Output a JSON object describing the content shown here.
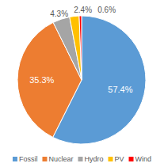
{
  "chart_data": {
    "type": "pie",
    "categories": [
      "Fossil",
      "Nuclear",
      "Hydro",
      "PV",
      "Wind"
    ],
    "values": [
      57.4,
      35.3,
      4.3,
      2.4,
      0.6
    ],
    "value_labels": [
      "57.4%",
      "35.3%",
      "4.3%",
      "2.4%",
      "0.6%"
    ],
    "colors": [
      "#5b9bd5",
      "#ed7d31",
      "#a5a5a5",
      "#ffc000",
      "#ff0000"
    ],
    "data_labels": true,
    "legend": "bottom"
  }
}
